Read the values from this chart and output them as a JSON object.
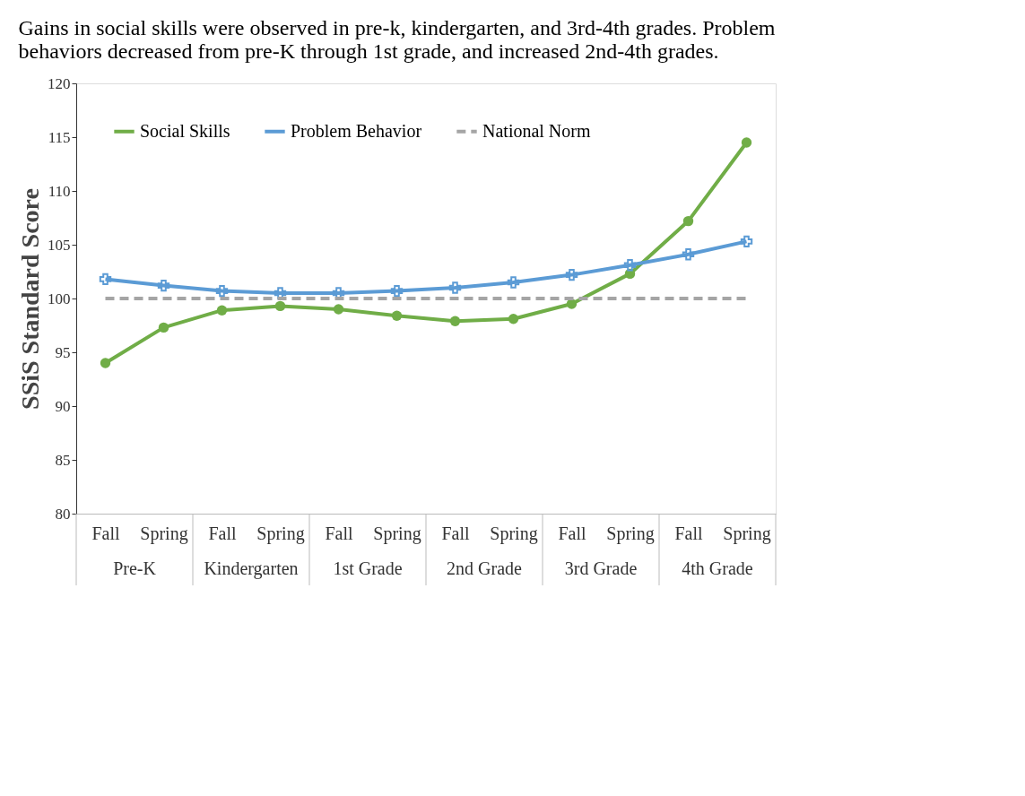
{
  "chart_data": {
    "type": "line",
    "title": "Gains in social skills were observed in pre-k, kindergarten, and 3rd-4th grades. Problem behaviors decreased from pre-K through 1st grade, and increased 2nd-4th grades.",
    "ylabel": "SSiS Standard Score",
    "categories": [
      "Fall",
      "Spring",
      "Fall",
      "Spring",
      "Fall",
      "Spring",
      "Fall",
      "Spring",
      "Fall",
      "Spring",
      "Fall",
      "Spring"
    ],
    "annotations": [
      "Pre-K",
      "Kindergarten",
      "1st Grade",
      "2nd Grade",
      "3rd Grade",
      "4th Grade"
    ],
    "series": [
      {
        "name": "Social Skills",
        "color": "#70ad47",
        "marker": "circle",
        "line_style": "solid",
        "values": [
          94.0,
          97.3,
          98.9,
          99.3,
          99.0,
          98.4,
          97.9,
          98.1,
          99.5,
          102.3,
          107.2,
          114.5
        ]
      },
      {
        "name": "Problem Behavior",
        "color": "#5b9bd5",
        "marker": "cross",
        "line_style": "solid",
        "values": [
          101.8,
          101.2,
          100.7,
          100.5,
          100.5,
          100.7,
          101.0,
          101.5,
          102.2,
          103.1,
          104.1,
          105.3
        ]
      },
      {
        "name": "National Norm",
        "color": "#a5a5a5",
        "marker": "none",
        "line_style": "dashed",
        "values": [
          100,
          100,
          100,
          100,
          100,
          100,
          100,
          100,
          100,
          100,
          100,
          100
        ]
      }
    ],
    "ylim": [
      80,
      120
    ],
    "yticks": [
      80,
      85,
      90,
      95,
      100,
      105,
      110,
      115,
      120
    ],
    "grid": false,
    "legend": "top"
  }
}
